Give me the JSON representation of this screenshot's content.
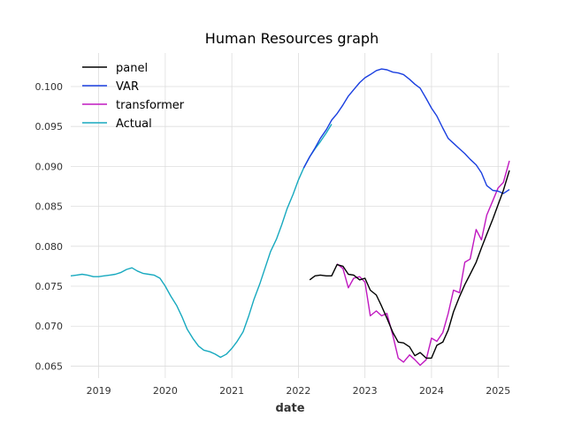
{
  "chart_data": {
    "type": "line",
    "title": "Human Resources graph",
    "xlabel": "date",
    "ylabel": "",
    "xlim": [
      2018.58,
      2025.17
    ],
    "ylim": [
      0.0635,
      0.1042
    ],
    "x_ticks": [
      2019,
      2020,
      2021,
      2022,
      2023,
      2024,
      2025
    ],
    "y_ticks": [
      0.065,
      0.07,
      0.075,
      0.08,
      0.085,
      0.09,
      0.095,
      0.1
    ],
    "grid": true,
    "legend_position": "top-left",
    "series": [
      {
        "name": "panel",
        "color": "#000000",
        "x": [
          2022.17,
          2022.25,
          2022.33,
          2022.42,
          2022.5,
          2022.58,
          2022.67,
          2022.75,
          2022.83,
          2022.92,
          2023.0,
          2023.08,
          2023.17,
          2023.25,
          2023.33,
          2023.42,
          2023.5,
          2023.58,
          2023.67,
          2023.75,
          2023.83,
          2023.92,
          2024.0,
          2024.08,
          2024.17,
          2024.25,
          2024.33,
          2024.42,
          2024.5,
          2024.58,
          2024.67,
          2024.75,
          2024.83,
          2024.92,
          2025.0,
          2025.08,
          2025.17
        ],
        "y": [
          0.0758,
          0.0763,
          0.0764,
          0.0763,
          0.0763,
          0.0777,
          0.0775,
          0.0765,
          0.0764,
          0.0758,
          0.076,
          0.0745,
          0.0739,
          0.0725,
          0.071,
          0.0692,
          0.068,
          0.0679,
          0.0674,
          0.0663,
          0.0667,
          0.066,
          0.066,
          0.0676,
          0.068,
          0.0695,
          0.0718,
          0.0737,
          0.0752,
          0.0765,
          0.078,
          0.0798,
          0.0815,
          0.0834,
          0.0852,
          0.087,
          0.0895
        ]
      },
      {
        "name": "VAR",
        "color": "#1a3fe0",
        "x": [
          2022.08,
          2022.17,
          2022.25,
          2022.33,
          2022.42,
          2022.5,
          2022.58,
          2022.67,
          2022.75,
          2022.83,
          2022.92,
          2023.0,
          2023.08,
          2023.17,
          2023.25,
          2023.33,
          2023.42,
          2023.5,
          2023.58,
          2023.67,
          2023.75,
          2023.83,
          2023.92,
          2024.0,
          2024.08,
          2024.17,
          2024.25,
          2024.33,
          2024.42,
          2024.5,
          2024.58,
          2024.67,
          2024.75,
          2024.83,
          2024.92,
          2025.0,
          2025.08,
          2025.17
        ],
        "y": [
          0.0898,
          0.0912,
          0.0923,
          0.0935,
          0.0946,
          0.0958,
          0.0966,
          0.0977,
          0.0988,
          0.0996,
          0.1005,
          0.1011,
          0.1015,
          0.102,
          0.1022,
          0.1021,
          0.1018,
          0.1017,
          0.1015,
          0.1009,
          0.1003,
          0.0998,
          0.0985,
          0.0973,
          0.0963,
          0.0948,
          0.0935,
          0.0929,
          0.0922,
          0.0916,
          0.0909,
          0.0902,
          0.0892,
          0.0876,
          0.087,
          0.0869,
          0.0866,
          0.0871
        ]
      },
      {
        "name": "transformer",
        "color": "#c018c0",
        "x": [
          2022.58,
          2022.67,
          2022.75,
          2022.83,
          2022.92,
          2023.0,
          2023.08,
          2023.17,
          2023.25,
          2023.33,
          2023.42,
          2023.5,
          2023.58,
          2023.67,
          2023.75,
          2023.83,
          2023.92,
          2024.0,
          2024.08,
          2024.17,
          2024.25,
          2024.33,
          2024.42,
          2024.5,
          2024.58,
          2024.67,
          2024.75,
          2024.83,
          2024.92,
          2025.0,
          2025.08,
          2025.17
        ],
        "y": [
          0.0778,
          0.0772,
          0.0748,
          0.076,
          0.0762,
          0.0755,
          0.0713,
          0.0719,
          0.0713,
          0.0716,
          0.0688,
          0.066,
          0.0655,
          0.0664,
          0.0658,
          0.0651,
          0.0658,
          0.0685,
          0.0681,
          0.0692,
          0.0716,
          0.0745,
          0.0742,
          0.078,
          0.0784,
          0.0821,
          0.0808,
          0.0839,
          0.0857,
          0.0873,
          0.088,
          0.0907
        ]
      },
      {
        "name": "Actual",
        "color": "#17a9bf",
        "x": [
          2018.58,
          2018.67,
          2018.75,
          2018.83,
          2018.92,
          2019.0,
          2019.08,
          2019.17,
          2019.25,
          2019.33,
          2019.42,
          2019.5,
          2019.58,
          2019.67,
          2019.75,
          2019.83,
          2019.92,
          2020.0,
          2020.08,
          2020.17,
          2020.25,
          2020.33,
          2020.42,
          2020.5,
          2020.58,
          2020.67,
          2020.75,
          2020.83,
          2020.92,
          2021.0,
          2021.08,
          2021.17,
          2021.25,
          2021.33,
          2021.42,
          2021.5,
          2021.58,
          2021.67,
          2021.75,
          2021.83,
          2021.92,
          2022.0,
          2022.08,
          2022.17,
          2022.25,
          2022.33,
          2022.42,
          2022.5
        ],
        "y": [
          0.0763,
          0.0764,
          0.0765,
          0.0764,
          0.0762,
          0.0762,
          0.0763,
          0.0764,
          0.0765,
          0.0767,
          0.0771,
          0.0773,
          0.0769,
          0.0766,
          0.0765,
          0.0764,
          0.076,
          0.075,
          0.0738,
          0.0726,
          0.0712,
          0.0696,
          0.0684,
          0.0675,
          0.067,
          0.0668,
          0.0665,
          0.0661,
          0.0665,
          0.0672,
          0.0681,
          0.0693,
          0.0712,
          0.0733,
          0.0753,
          0.0773,
          0.0793,
          0.0809,
          0.0827,
          0.0847,
          0.0865,
          0.0883,
          0.0898,
          0.0912,
          0.0922,
          0.0931,
          0.0942,
          0.0953
        ]
      }
    ]
  }
}
